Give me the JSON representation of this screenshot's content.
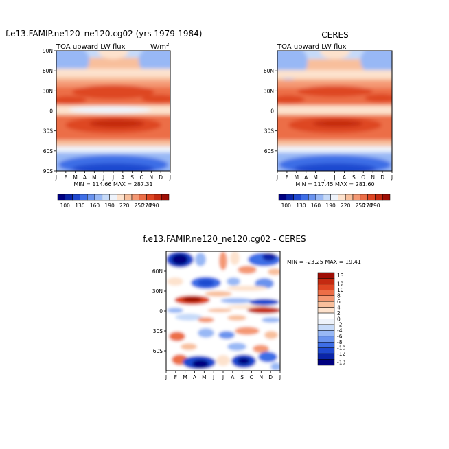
{
  "chart_data": [
    {
      "type": "heatmap",
      "title": "f.e13.FAMIP.ne120_ne120.cg02 (yrs 1979-1984)",
      "subtitle_left": "TOA upward LW flux",
      "subtitle_right": "W/m",
      "subtitle_right_sup": "2",
      "x_ticks": [
        "J",
        "F",
        "M",
        "A",
        "M",
        "J",
        "J",
        "A",
        "S",
        "O",
        "N",
        "D",
        "J"
      ],
      "y_ticks": [
        "90N",
        "60N",
        "30N",
        "0",
        "30S",
        "60S",
        "90S"
      ],
      "stats": "MIN = 114.66 MAX = 287.31",
      "min": 114.66,
      "max": 287.31,
      "colorbar_labels": [
        "100",
        "130",
        "160",
        "190",
        "220",
        "250",
        "270",
        "290"
      ]
    },
    {
      "type": "heatmap",
      "title": "CERES",
      "subtitle_left": "TOA upward LW flux",
      "x_ticks": [
        "J",
        "F",
        "M",
        "A",
        "M",
        "J",
        "J",
        "A",
        "S",
        "O",
        "N",
        "D",
        "J"
      ],
      "y_ticks": [
        "60N",
        "30N",
        "0",
        "30S",
        "60S"
      ],
      "stats": "MIN = 117.45 MAX = 281.60",
      "min": 117.45,
      "max": 281.6,
      "colorbar_labels": [
        "100",
        "130",
        "160",
        "190",
        "220",
        "250",
        "270",
        "290"
      ]
    },
    {
      "type": "heatmap",
      "title": "f.e13.FAMIP.ne120_ne120.cg02 - CERES",
      "x_ticks": [
        "J",
        "F",
        "M",
        "A",
        "M",
        "J",
        "J",
        "A",
        "S",
        "O",
        "N",
        "D",
        "J"
      ],
      "y_ticks": [
        "60N",
        "30N",
        "0",
        "30S",
        "60S"
      ],
      "stats": "MIN = -23.25 MAX =  19.41",
      "min": -23.25,
      "max": 19.41,
      "colorbar_labels": [
        "13",
        "12",
        "10",
        "8",
        "6",
        "4",
        "2",
        "0",
        "-2",
        "-4",
        "-6",
        "-8",
        "-10",
        "-12",
        "-13"
      ]
    }
  ],
  "colors": {
    "abs_scale": [
      "#00007f",
      "#0a24a8",
      "#1f48cf",
      "#3e6ee6",
      "#6a93ee",
      "#98b8f5",
      "#c6daf9",
      "#eef3fb",
      "#fde2cd",
      "#f8bf9c",
      "#f49873",
      "#ec6e47",
      "#de4623",
      "#c42a11",
      "#9e0e05"
    ],
    "diff_scale": [
      "#9e0e05",
      "#c42a11",
      "#de4623",
      "#ec6e47",
      "#f49873",
      "#f8bf9c",
      "#fde2cd",
      "#ffffff",
      "#eef3fb",
      "#c6daf9",
      "#98b8f5",
      "#6a93ee",
      "#3e6ee6",
      "#1f48cf",
      "#0a24a8",
      "#00007f"
    ]
  }
}
